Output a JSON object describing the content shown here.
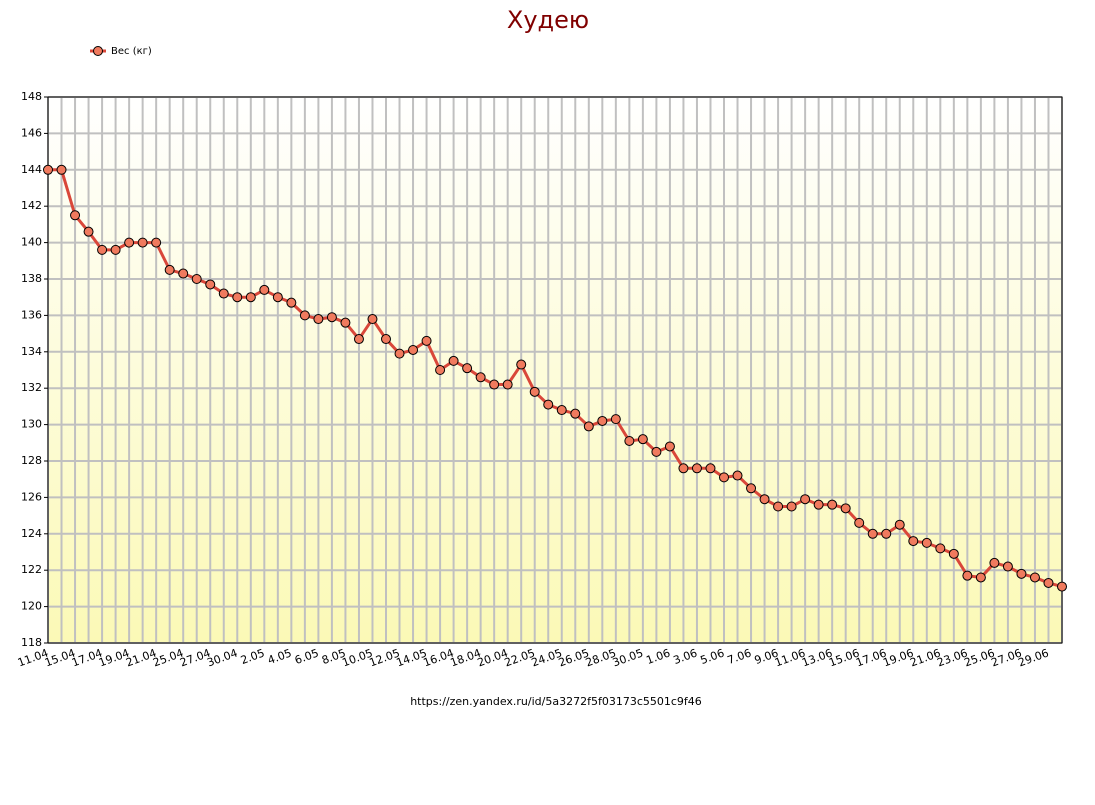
{
  "chart_data": {
    "type": "line",
    "title": "Худею",
    "source": "https://zen.yandex.ru/id/5a3272f5f03173c5501c9f46",
    "categories": [
      "11.04",
      null,
      "15.04",
      null,
      "17.04",
      null,
      "19.04",
      null,
      "21.04",
      null,
      "25.04",
      null,
      "27.04",
      null,
      "30.04",
      null,
      "2.05",
      null,
      "4.05",
      null,
      "6.05",
      null,
      "8.05",
      null,
      "10.05",
      null,
      "12.05",
      null,
      "14.05",
      null,
      "16.04",
      null,
      "18.04",
      null,
      "20.04",
      null,
      "22.05",
      null,
      "24.05",
      null,
      "26.05",
      null,
      "28.05",
      null,
      "30.05",
      null,
      "1.06",
      null,
      "3.06",
      null,
      "5.06",
      null,
      "7.06",
      null,
      "9.06",
      null,
      "11.06",
      null,
      "13.06",
      null,
      "15.06",
      null,
      "17.06",
      null,
      "19.06",
      null,
      "21.06",
      null,
      "23.06",
      null,
      "25.06",
      null,
      "27.06",
      null,
      "29.06",
      null
    ],
    "series": [
      {
        "name": "Вес (кг)",
        "color": "#d9473a",
        "marker_color": "#f07a5e",
        "values": [
          144,
          144,
          141.5,
          140.6,
          139.6,
          139.6,
          140,
          140,
          140,
          138.5,
          138.3,
          138,
          137.7,
          137.2,
          137,
          137,
          137.4,
          137,
          136.7,
          136,
          135.8,
          135.9,
          135.6,
          134.7,
          135.8,
          134.7,
          133.9,
          134.1,
          134.6,
          133,
          133.5,
          133.1,
          132.6,
          132.2,
          132.2,
          133.3,
          131.8,
          131.1,
          130.8,
          130.6,
          129.9,
          130.2,
          130.3,
          129.1,
          129.2,
          128.5,
          128.8,
          127.6,
          127.6,
          127.6,
          127.1,
          127.2,
          126.5,
          125.9,
          125.5,
          125.5,
          125.9,
          125.6,
          125.6,
          125.4,
          124.6,
          124,
          124,
          124.5,
          123.6,
          123.5,
          123.2,
          122.9,
          121.7,
          121.6,
          122.4,
          122.2,
          121.8,
          121.6,
          121.3,
          121.1
        ]
      }
    ],
    "ylim": [
      118,
      148
    ],
    "yticks": [
      118,
      120,
      122,
      124,
      126,
      128,
      130,
      132,
      134,
      136,
      138,
      140,
      142,
      144,
      146,
      148
    ],
    "grid": true
  }
}
